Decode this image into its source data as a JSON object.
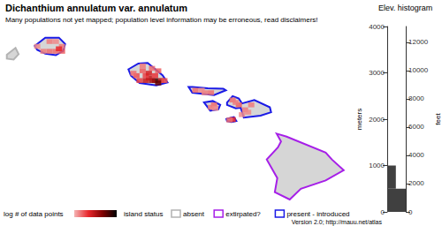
{
  "map": {
    "title": "Dichanthium annulatum var. annulatum",
    "subtitle": "Many populations not yet mapped; population level information may be erroneous, read disclaimers!",
    "xlim": [
      -160.35,
      -154.65
    ],
    "ylim": [
      18.8,
      22.35
    ],
    "tick_labels": false,
    "islands": [
      {
        "status": "absent",
        "outline": [
          [
            -160.24,
            21.88
          ],
          [
            -160.1,
            22.02
          ],
          [
            -160.05,
            21.89
          ],
          [
            -160.13,
            21.78
          ],
          [
            -160.24,
            21.8
          ]
        ]
      },
      {
        "status": "present - introduced",
        "outline": [
          [
            -159.79,
            22.06
          ],
          [
            -159.62,
            22.23
          ],
          [
            -159.4,
            22.23
          ],
          [
            -159.3,
            22.1
          ],
          [
            -159.33,
            21.96
          ],
          [
            -159.45,
            21.87
          ],
          [
            -159.62,
            21.9
          ],
          [
            -159.75,
            21.98
          ]
        ]
      },
      {
        "status": "present - introduced",
        "outline": [
          [
            -158.28,
            21.58
          ],
          [
            -158.12,
            21.7
          ],
          [
            -157.97,
            21.71
          ],
          [
            -157.73,
            21.46
          ],
          [
            -157.65,
            21.31
          ],
          [
            -157.83,
            21.25
          ],
          [
            -158.1,
            21.3
          ],
          [
            -158.24,
            21.45
          ]
        ]
      },
      {
        "status": "present - introduced",
        "outline": [
          [
            -157.31,
            21.22
          ],
          [
            -157.25,
            21.1
          ],
          [
            -156.9,
            21.05
          ],
          [
            -156.71,
            21.15
          ],
          [
            -156.75,
            21.18
          ],
          [
            -157.0,
            21.19
          ],
          [
            -157.25,
            21.22
          ]
        ]
      },
      {
        "status": "present - introduced",
        "outline": [
          [
            -157.06,
            20.9
          ],
          [
            -156.96,
            20.73
          ],
          [
            -156.83,
            20.76
          ],
          [
            -156.8,
            20.85
          ],
          [
            -156.92,
            20.93
          ]
        ]
      },
      {
        "status": "present - introduced",
        "outline": [
          [
            -156.69,
            20.9
          ],
          [
            -156.6,
            21.03
          ],
          [
            -156.5,
            20.98
          ],
          [
            -156.45,
            20.88
          ],
          [
            -156.25,
            20.95
          ],
          [
            -156.0,
            20.8
          ],
          [
            -155.98,
            20.7
          ],
          [
            -156.15,
            20.63
          ],
          [
            -156.42,
            20.59
          ],
          [
            -156.47,
            20.79
          ],
          [
            -156.55,
            20.78
          ],
          [
            -156.69,
            20.85
          ]
        ]
      },
      {
        "status": "present - introduced",
        "outline": [
          [
            -156.7,
            20.56
          ],
          [
            -156.58,
            20.6
          ],
          [
            -156.54,
            20.52
          ],
          [
            -156.62,
            20.5
          ],
          [
            -156.69,
            20.52
          ]
        ]
      },
      {
        "status": "extirpated?",
        "outline": [
          [
            -155.89,
            20.26
          ],
          [
            -155.73,
            20.2
          ],
          [
            -155.1,
            19.87
          ],
          [
            -155.0,
            19.73
          ],
          [
            -154.81,
            19.51
          ],
          [
            -155.1,
            19.3
          ],
          [
            -155.5,
            19.13
          ],
          [
            -155.68,
            18.91
          ],
          [
            -155.92,
            19.06
          ],
          [
            -155.88,
            19.35
          ],
          [
            -156.05,
            19.73
          ],
          [
            -155.87,
            19.98
          ],
          [
            -155.82,
            20.1
          ]
        ]
      }
    ],
    "cells": [
      [
        -159.45,
        21.95,
        0.5
      ],
      [
        -159.35,
        22.05,
        0.4
      ],
      [
        -159.35,
        21.95,
        0.6
      ],
      [
        -159.55,
        21.95,
        0.5
      ],
      [
        -159.65,
        21.95,
        0.4
      ],
      [
        -159.75,
        22.05,
        0.3
      ],
      [
        -159.55,
        22.15,
        0.4
      ],
      [
        -159.45,
        22.15,
        0.3
      ],
      [
        -159.4,
        22.0,
        1.0
      ],
      [
        -157.85,
        21.35,
        2.5
      ],
      [
        -157.75,
        21.35,
        1.5
      ],
      [
        -157.8,
        21.3,
        2.2
      ],
      [
        -157.9,
        21.35,
        1.6
      ],
      [
        -157.95,
        21.4,
        1.4
      ],
      [
        -158.0,
        21.45,
        0.8
      ],
      [
        -158.05,
        21.55,
        0.6
      ],
      [
        -158.15,
        21.45,
        0.7
      ],
      [
        -158.2,
        21.5,
        0.5
      ],
      [
        -157.85,
        21.45,
        0.9
      ],
      [
        -157.8,
        21.55,
        0.6
      ],
      [
        -157.9,
        21.6,
        0.5
      ],
      [
        -158.05,
        21.65,
        0.4
      ],
      [
        -157.95,
        21.5,
        1.2
      ],
      [
        -157.7,
        21.35,
        0.7
      ],
      [
        -158.1,
        21.35,
        0.8
      ],
      [
        -158.0,
        21.35,
        1.3
      ],
      [
        -157.2,
        21.15,
        0.5
      ],
      [
        -157.05,
        21.1,
        0.4
      ],
      [
        -156.95,
        21.1,
        0.5
      ],
      [
        -157.1,
        21.15,
        0.3
      ],
      [
        -156.9,
        20.85,
        0.5
      ],
      [
        -156.95,
        20.8,
        0.4
      ],
      [
        -156.88,
        20.78,
        0.3
      ],
      [
        -156.5,
        20.85,
        0.6
      ],
      [
        -156.4,
        20.75,
        0.4
      ],
      [
        -156.35,
        20.7,
        0.3
      ],
      [
        -156.6,
        20.95,
        0.5
      ],
      [
        -156.3,
        20.85,
        0.4
      ],
      [
        -156.45,
        20.65,
        0.3
      ],
      [
        -156.55,
        20.9,
        0.4
      ],
      [
        -156.6,
        20.55,
        1.0
      ],
      [
        -156.65,
        20.54,
        0.5
      ]
    ],
    "color_legend": {
      "label": "log # of data points",
      "colors": [
        "#f4b4b4",
        "#e8262b",
        "#7f0000",
        "#000000"
      ],
      "range": [
        0,
        3
      ]
    },
    "status_legend": {
      "label": "island status",
      "items": [
        {
          "label": "absent",
          "color": "#b3b3b3"
        },
        {
          "label": "extirpated?",
          "color": "#a61fe8"
        },
        {
          "label": "present - introduced",
          "color": "#1a1ae6"
        }
      ]
    },
    "footer": "Version 2.0; http://mauu.net/atlas"
  },
  "chart_data": {
    "type": "histogram",
    "title": "Elev. histogram",
    "orientation": "horizontal",
    "bins": [
      0,
      500,
      1000
    ],
    "counts": [
      60,
      28
    ],
    "color": "#404040",
    "y_label": "meters",
    "ylim": [
      0,
      4000
    ],
    "yticks": [
      0,
      1000,
      2000,
      3000,
      4000
    ],
    "y2_label": "feet",
    "y2lim": [
      0,
      13123.36
    ],
    "y2ticks": [
      0,
      2000,
      4000,
      6000,
      8000,
      10000,
      12000
    ],
    "tick_labels": "y",
    "grid": false
  }
}
